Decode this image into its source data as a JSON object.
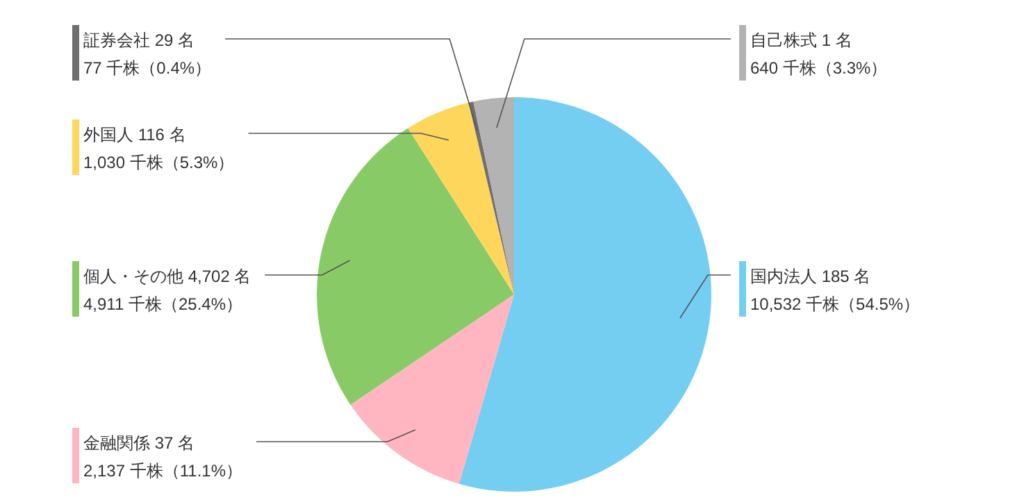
{
  "chart_data": {
    "type": "pie",
    "categories": [
      "国内法人 185 名",
      "金融関係 37 名",
      "個人・その他 4,702 名",
      "外国人 116 名",
      "証券会社 29 名",
      "自己株式 1 名"
    ],
    "values": [
      10532,
      2137,
      4911,
      1030,
      77,
      640
    ],
    "value_labels": [
      "10,532 千株（54.5%）",
      "2,137 千株（11.1%）",
      "4,911 千株（25.4%）",
      "1,030 千株（5.3%）",
      "77 千株（0.4%）",
      "640 千株（3.3%）"
    ],
    "colors": [
      "#74cef2",
      "#ffb6c1",
      "#88cb66",
      "#ffd65c",
      "#6f6f6f",
      "#b3b3b3"
    ],
    "legend": "left"
  }
}
